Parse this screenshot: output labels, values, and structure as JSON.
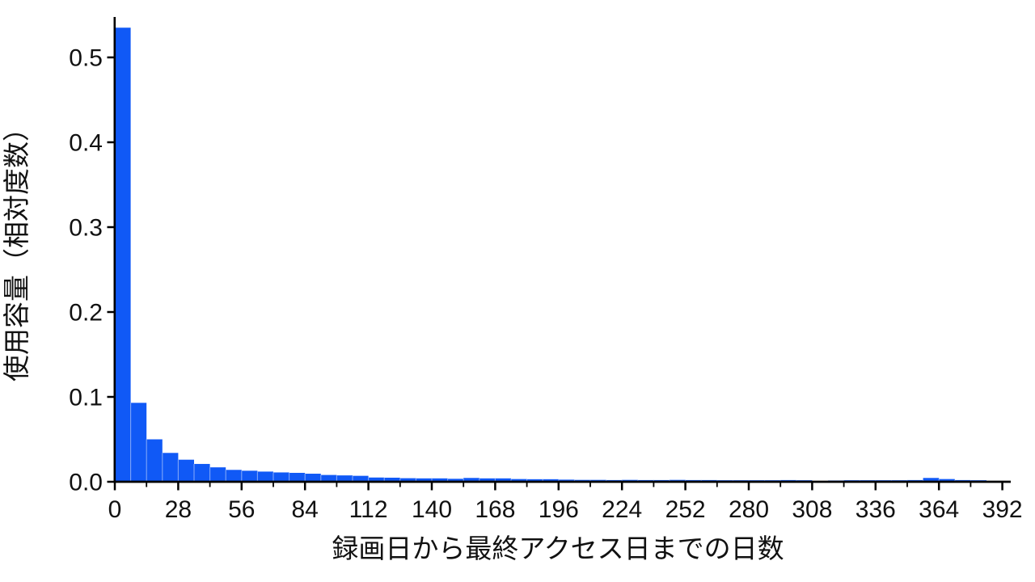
{
  "page": {
    "background": "#ffffff"
  },
  "chart_data": {
    "type": "bar",
    "subtype": "histogram",
    "title": "",
    "xlabel": "録画日から最終アクセス日までの日数",
    "ylabel": "使用容量（相対度数）",
    "bin_width_days": 7,
    "bin_starts": [
      0,
      7,
      14,
      21,
      28,
      35,
      42,
      49,
      56,
      63,
      70,
      77,
      84,
      91,
      98,
      105,
      112,
      119,
      126,
      133,
      140,
      147,
      154,
      161,
      168,
      175,
      182,
      189,
      196,
      203,
      210,
      217,
      224,
      231,
      238,
      245,
      252,
      259,
      266,
      273,
      280,
      287,
      294,
      301,
      308,
      315,
      322,
      329,
      336,
      343,
      350,
      357,
      364,
      371,
      378,
      385
    ],
    "values": [
      0.535,
      0.093,
      0.05,
      0.034,
      0.026,
      0.021,
      0.017,
      0.014,
      0.013,
      0.012,
      0.011,
      0.0105,
      0.0095,
      0.008,
      0.0075,
      0.007,
      0.005,
      0.0048,
      0.0042,
      0.004,
      0.004,
      0.0035,
      0.0045,
      0.004,
      0.004,
      0.0032,
      0.003,
      0.003,
      0.0025,
      0.0022,
      0.0022,
      0.002,
      0.0022,
      0.002,
      0.002,
      0.0022,
      0.002,
      0.002,
      0.0018,
      0.0018,
      0.0018,
      0.0018,
      0.002,
      0.0018,
      0.0006,
      0.0015,
      0.0018,
      0.0018,
      0.0018,
      0.0018,
      0.002,
      0.0045,
      0.0032,
      0.002,
      0.0018,
      0.001
    ],
    "x_major_ticks": [
      0,
      28,
      56,
      84,
      112,
      140,
      168,
      196,
      224,
      252,
      280,
      308,
      336,
      364,
      392
    ],
    "x_minor_ticks": [
      14,
      42,
      70,
      98,
      126,
      154,
      182,
      210,
      238,
      266,
      294,
      322,
      350,
      378
    ],
    "y_ticks": [
      0.0,
      0.1,
      0.2,
      0.3,
      0.4,
      0.5
    ],
    "xlim": [
      0,
      396
    ],
    "ylim": [
      0,
      0.55
    ],
    "grid": false,
    "bar_color": "#1059f6",
    "bar_seam_color": "#7fa5f9",
    "axis_color": "#000000",
    "text_color": "#111111"
  }
}
